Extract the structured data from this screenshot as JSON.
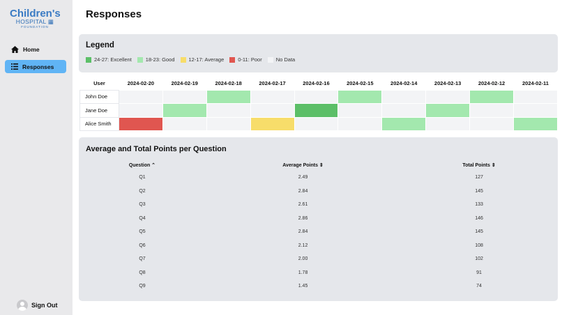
{
  "sidebar": {
    "logo": {
      "line1": "Children's",
      "line2": "HOSPITAL",
      "line3": "FOUNDATION",
      "small": "Alberta"
    },
    "items": [
      {
        "label": "Home",
        "icon": "home-icon",
        "active": false
      },
      {
        "label": "Responses",
        "icon": "list-icon",
        "active": true
      }
    ],
    "signout": "Sign Out"
  },
  "page_title": "Responses",
  "legend": {
    "title": "Legend",
    "items": [
      {
        "label": "24-27: Excellent",
        "color": "#5cbf68"
      },
      {
        "label": "18-23: Good",
        "color": "#a3e8ae"
      },
      {
        "label": "12-17: Average",
        "color": "#f7dd6a"
      },
      {
        "label": "0-11: Poor",
        "color": "#e05650"
      },
      {
        "label": "No Data",
        "color": "#f3f4f6"
      }
    ]
  },
  "heatmap": {
    "user_header": "User",
    "dates": [
      "2024-02-20",
      "2024-02-19",
      "2024-02-18",
      "2024-02-17",
      "2024-02-16",
      "2024-02-15",
      "2024-02-14",
      "2024-02-13",
      "2024-02-12",
      "2024-02-11"
    ],
    "rows": [
      {
        "user": "John Doe",
        "cells": [
          "none",
          "none",
          "good",
          "none",
          "none",
          "good",
          "none",
          "none",
          "good",
          "none"
        ]
      },
      {
        "user": "Jane Doe",
        "cells": [
          "none",
          "good",
          "none",
          "none",
          "excellent",
          "none",
          "none",
          "good",
          "none",
          "none"
        ]
      },
      {
        "user": "Alice Smith",
        "cells": [
          "poor",
          "none",
          "none",
          "average",
          "none",
          "none",
          "good",
          "none",
          "none",
          "good"
        ]
      }
    ]
  },
  "questions": {
    "title": "Average and Total Points per Question",
    "headers": [
      "Question ⌃",
      "Average Points ⇕",
      "Total Points ⇕"
    ],
    "rows": [
      [
        "Q1",
        "2.49",
        "127"
      ],
      [
        "Q2",
        "2.84",
        "145"
      ],
      [
        "Q3",
        "2.61",
        "133"
      ],
      [
        "Q4",
        "2.86",
        "146"
      ],
      [
        "Q5",
        "2.84",
        "145"
      ],
      [
        "Q6",
        "2.12",
        "108"
      ],
      [
        "Q7",
        "2.00",
        "102"
      ],
      [
        "Q8",
        "1.78",
        "91"
      ],
      [
        "Q9",
        "1.45",
        "74"
      ]
    ]
  }
}
